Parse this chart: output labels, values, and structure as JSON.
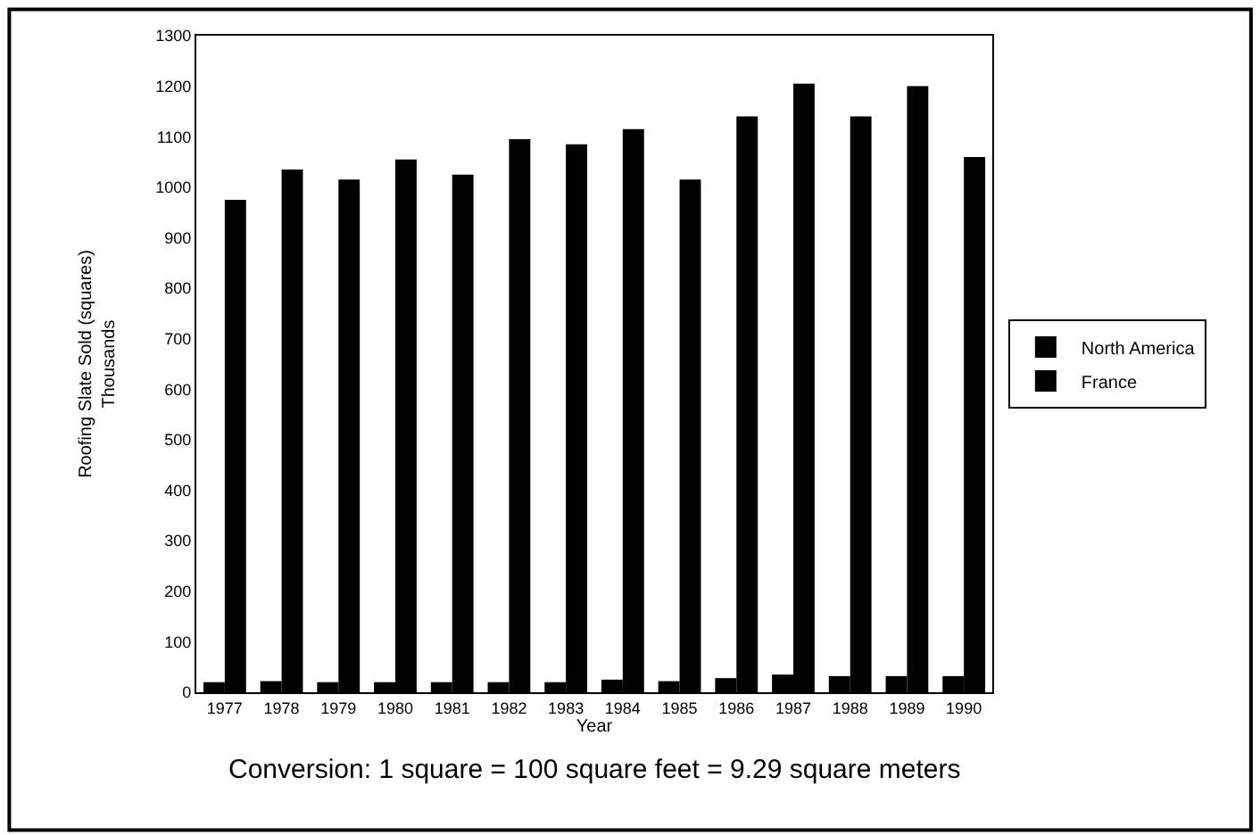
{
  "chart_data": {
    "type": "bar",
    "xlabel": "Year",
    "ylabel": "Roofing Slate Sold (squares)\nThousands",
    "categories": [
      "1977",
      "1978",
      "1979",
      "1980",
      "1981",
      "1982",
      "1983",
      "1984",
      "1985",
      "1986",
      "1987",
      "1988",
      "1989",
      "1990"
    ],
    "series": [
      {
        "name": "North America",
        "color": "#000000",
        "values": [
          20,
          22,
          20,
          20,
          20,
          20,
          20,
          25,
          22,
          28,
          35,
          32,
          32,
          32
        ]
      },
      {
        "name": "France",
        "color": "#000000",
        "values": [
          975,
          1035,
          1015,
          1055,
          1025,
          1095,
          1085,
          1115,
          1015,
          1140,
          1205,
          1140,
          1200,
          1060
        ]
      }
    ],
    "ylim": [
      0,
      1300
    ],
    "yticks": [
      0,
      100,
      200,
      300,
      400,
      500,
      600,
      700,
      800,
      900,
      1000,
      1100,
      1200,
      1300
    ],
    "legend": "right",
    "grid": false,
    "annotations": [
      "Conversion: 1 square = 100 square feet = 9.29 square meters"
    ]
  }
}
